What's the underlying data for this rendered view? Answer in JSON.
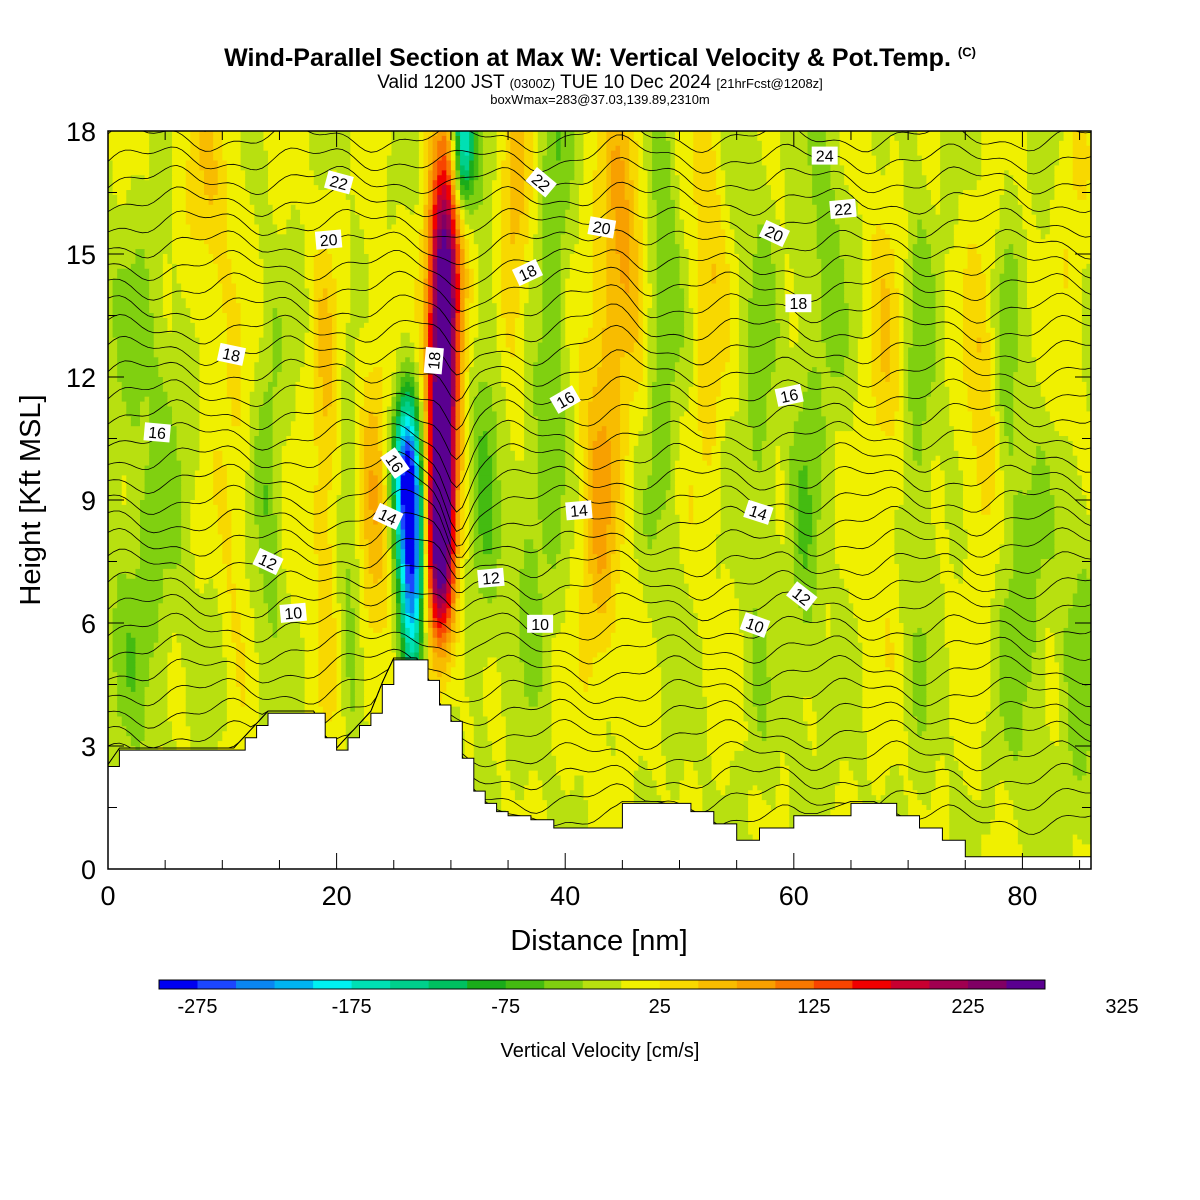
{
  "header": {
    "title": "Wind-Parallel Section at Max W: Vertical Velocity & Pot.Temp.",
    "copyright": "(C)",
    "valid_prefix": "Valid 1200 JST",
    "utc": "(0300Z)",
    "valid_date": "TUE 10 Dec 2024",
    "forecast": "[21hrFcst@1208z]",
    "box_info": "boxWmax=283@37.03,139.89,2310m"
  },
  "chart_data": {
    "type": "heatmap",
    "xlabel": "Distance [nm]",
    "ylabel": "Height [Kft MSL]",
    "xlim": [
      0,
      86
    ],
    "ylim": [
      0,
      18
    ],
    "x_ticks": [
      "0",
      "20",
      "40",
      "60",
      "80"
    ],
    "y_ticks": [
      "0",
      "3",
      "6",
      "9",
      "12",
      "15",
      "18"
    ],
    "colorbar": {
      "label": "Vertical Velocity [cm/s]",
      "tick_labels": [
        "-275",
        "-175",
        "-75",
        "25",
        "125",
        "225",
        "325"
      ],
      "colors": [
        "#0000f0",
        "#1c46ff",
        "#0a86f0",
        "#00b4f0",
        "#00f0f0",
        "#00e0b4",
        "#00d08c",
        "#00c060",
        "#1aac1a",
        "#44bb11",
        "#80d010",
        "#b8e010",
        "#f0f000",
        "#f8d800",
        "#f8bc00",
        "#f8a000",
        "#f87800",
        "#f84400",
        "#f00000",
        "#c80030",
        "#a00050",
        "#800064",
        "#5a0090"
      ]
    },
    "terrain": [
      [
        0,
        2.5
      ],
      [
        1,
        2.9
      ],
      [
        6,
        2.9
      ],
      [
        11,
        2.9
      ],
      [
        12,
        3.2
      ],
      [
        13,
        3.5
      ],
      [
        14,
        3.8
      ],
      [
        16,
        3.8
      ],
      [
        18,
        3.8
      ],
      [
        19,
        3.2
      ],
      [
        20,
        2.9
      ],
      [
        21,
        3.2
      ],
      [
        22,
        3.5
      ],
      [
        23,
        3.8
      ],
      [
        24,
        4.5
      ],
      [
        25,
        5.1
      ],
      [
        26,
        5.1
      ],
      [
        27,
        5.1
      ],
      [
        28,
        4.6
      ],
      [
        29,
        4.0
      ],
      [
        30,
        3.6
      ],
      [
        31,
        2.7
      ],
      [
        32,
        1.9
      ],
      [
        33,
        1.6
      ],
      [
        34,
        1.4
      ],
      [
        35,
        1.3
      ],
      [
        37,
        1.2
      ],
      [
        39,
        1.0
      ],
      [
        42,
        1.0
      ],
      [
        45,
        1.6
      ],
      [
        48,
        1.6
      ],
      [
        51,
        1.4
      ],
      [
        53,
        1.1
      ],
      [
        55,
        0.7
      ],
      [
        57,
        1.0
      ],
      [
        60,
        1.3
      ],
      [
        62,
        1.3
      ],
      [
        65,
        1.6
      ],
      [
        67,
        1.6
      ],
      [
        69,
        1.3
      ],
      [
        71,
        1.0
      ],
      [
        73,
        0.7
      ],
      [
        75,
        0.3
      ],
      [
        86,
        0.3
      ]
    ],
    "w_features": [
      {
        "x": 29.2,
        "y": 11.0,
        "sx": 0.9,
        "sy": 3.2,
        "amp": 283
      },
      {
        "x": 29.8,
        "y": 15.0,
        "sx": 1.1,
        "sy": 2.3,
        "amp": 170
      },
      {
        "x": 28.9,
        "y": 7.6,
        "sx": 0.9,
        "sy": 1.6,
        "amp": 150
      },
      {
        "x": 26.6,
        "y": 7.5,
        "sx": 0.8,
        "sy": 2.2,
        "amp": -270
      },
      {
        "x": 25.9,
        "y": 9.8,
        "sx": 0.8,
        "sy": 1.3,
        "amp": -170
      },
      {
        "x": 31.0,
        "y": 17.7,
        "sx": 0.7,
        "sy": 1.3,
        "amp": -220
      },
      {
        "x": 23.3,
        "y": 9.0,
        "sx": 1.1,
        "sy": 3.5,
        "amp": 60
      },
      {
        "x": 19.0,
        "y": 10.0,
        "sx": 0.8,
        "sy": 4.0,
        "amp": 55
      },
      {
        "x": 14.0,
        "y": 9.0,
        "sx": 0.8,
        "sy": 3.0,
        "amp": -45
      },
      {
        "x": 21.3,
        "y": 7.5,
        "sx": 0.7,
        "sy": 3.0,
        "amp": -40
      },
      {
        "x": 33.0,
        "y": 10.0,
        "sx": 1.0,
        "sy": 4.0,
        "amp": -45
      },
      {
        "x": 35.5,
        "y": 16.0,
        "sx": 1.0,
        "sy": 3.0,
        "amp": 60
      },
      {
        "x": 39.0,
        "y": 15.0,
        "sx": 0.9,
        "sy": 4.5,
        "amp": -50
      },
      {
        "x": 37.0,
        "y": 8.0,
        "sx": 1.0,
        "sy": 2.5,
        "amp": -40
      },
      {
        "x": 43.0,
        "y": 9.0,
        "sx": 1.2,
        "sy": 3.5,
        "amp": 75
      },
      {
        "x": 45.0,
        "y": 15.5,
        "sx": 1.3,
        "sy": 3.0,
        "amp": 80
      },
      {
        "x": 48.5,
        "y": 14.0,
        "sx": 1.0,
        "sy": 4.5,
        "amp": -45
      },
      {
        "x": 52.5,
        "y": 14.5,
        "sx": 1.0,
        "sy": 4.0,
        "amp": 50
      },
      {
        "x": 57.0,
        "y": 11.0,
        "sx": 1.0,
        "sy": 5.0,
        "amp": -35
      },
      {
        "x": 61.0,
        "y": 8.5,
        "sx": 0.9,
        "sy": 4.0,
        "amp": -40
      },
      {
        "x": 63.0,
        "y": 15.0,
        "sx": 1.0,
        "sy": 3.0,
        "amp": -40
      },
      {
        "x": 68.0,
        "y": 12.0,
        "sx": 1.1,
        "sy": 4.0,
        "amp": 40
      },
      {
        "x": 71.0,
        "y": 11.0,
        "sx": 1.0,
        "sy": 5.0,
        "amp": -35
      },
      {
        "x": 76.5,
        "y": 11.0,
        "sx": 1.2,
        "sy": 3.5,
        "amp": 45
      },
      {
        "x": 78.5,
        "y": 12.5,
        "sx": 0.8,
        "sy": 3.0,
        "amp": -35
      },
      {
        "x": 80.0,
        "y": 6.5,
        "sx": 1.5,
        "sy": 3.0,
        "amp": -40
      },
      {
        "x": 85.0,
        "y": 6.0,
        "sx": 1.2,
        "sy": 4.0,
        "amp": -35
      },
      {
        "x": 84.5,
        "y": 14.0,
        "sx": 1.0,
        "sy": 3.5,
        "amp": 30
      },
      {
        "x": 4.0,
        "y": 12.0,
        "sx": 3.0,
        "sy": 4.0,
        "amp": -30
      },
      {
        "x": 2.5,
        "y": 5.5,
        "sx": 2.0,
        "sy": 2.0,
        "amp": -30
      },
      {
        "x": 9.0,
        "y": 15.0,
        "sx": 1.5,
        "sy": 3.0,
        "amp": 30
      },
      {
        "x": 11.0,
        "y": 9.0,
        "sx": 1.0,
        "sy": 3.0,
        "amp": 30
      },
      {
        "x": 7.0,
        "y": 17.0,
        "sx": 2.5,
        "sy": 2.0,
        "amp": 25
      }
    ],
    "theta_labels": [
      {
        "text": "10",
        "x": 16.2,
        "y": 6.25,
        "rot": -5
      },
      {
        "text": "12",
        "x": 14.0,
        "y": 7.5,
        "rot": 25
      },
      {
        "text": "14",
        "x": 24.5,
        "y": 8.6,
        "rot": 25
      },
      {
        "text": "16",
        "x": 25.1,
        "y": 9.9,
        "rot": 55
      },
      {
        "text": "18",
        "x": 28.5,
        "y": 12.4,
        "rot": -85
      },
      {
        "text": "16",
        "x": 4.3,
        "y": 10.65,
        "rot": 5
      },
      {
        "text": "18",
        "x": 10.8,
        "y": 12.55,
        "rot": 12
      },
      {
        "text": "20",
        "x": 19.3,
        "y": 15.35,
        "rot": -5
      },
      {
        "text": "22",
        "x": 20.2,
        "y": 16.75,
        "rot": 15
      },
      {
        "text": "12",
        "x": 33.5,
        "y": 7.1,
        "rot": -5
      },
      {
        "text": "10",
        "x": 37.8,
        "y": 5.98,
        "rot": 0
      },
      {
        "text": "14",
        "x": 41.2,
        "y": 8.75,
        "rot": -5
      },
      {
        "text": "16",
        "x": 40.0,
        "y": 11.45,
        "rot": -30
      },
      {
        "text": "18",
        "x": 36.7,
        "y": 14.55,
        "rot": -25
      },
      {
        "text": "20",
        "x": 43.2,
        "y": 15.65,
        "rot": 10
      },
      {
        "text": "22",
        "x": 37.9,
        "y": 16.75,
        "rot": 40
      },
      {
        "text": "10",
        "x": 56.6,
        "y": 5.95,
        "rot": 20
      },
      {
        "text": "14",
        "x": 56.9,
        "y": 8.7,
        "rot": 18
      },
      {
        "text": "12",
        "x": 60.7,
        "y": 6.65,
        "rot": 38
      },
      {
        "text": "16",
        "x": 59.6,
        "y": 11.55,
        "rot": -12
      },
      {
        "text": "18",
        "x": 60.4,
        "y": 13.8,
        "rot": 0
      },
      {
        "text": "20",
        "x": 58.3,
        "y": 15.5,
        "rot": 25
      },
      {
        "text": "22",
        "x": 64.3,
        "y": 16.1,
        "rot": -5
      },
      {
        "text": "24",
        "x": 62.7,
        "y": 17.4,
        "rot": 0
      }
    ]
  }
}
